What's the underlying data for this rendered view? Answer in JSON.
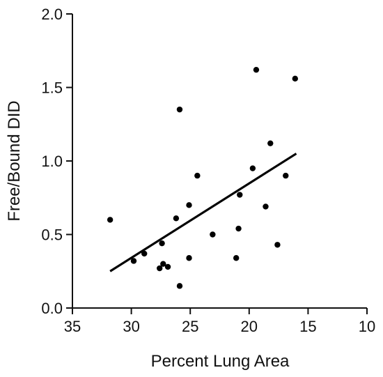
{
  "chart_data": {
    "type": "scatter",
    "title": "",
    "xlabel": "Percent Lung Area",
    "ylabel": "Free/Bound DID",
    "xlim": [
      35,
      10
    ],
    "ylim": [
      0.0,
      2.0
    ],
    "x_reversed": true,
    "grid": false,
    "x_ticks": [
      35,
      30,
      25,
      20,
      15,
      10
    ],
    "x_tick_labels": [
      "35",
      "30",
      "25",
      "20",
      "15",
      "10"
    ],
    "y_ticks": [
      0.0,
      0.5,
      1.0,
      1.5,
      2.0
    ],
    "y_tick_labels": [
      "0.0",
      "0.5",
      "1.0",
      "1.5",
      "2.0"
    ],
    "series": [
      {
        "points": [
          [
            31.8,
            0.6
          ],
          [
            29.8,
            0.32
          ],
          [
            28.9,
            0.37
          ],
          [
            27.6,
            0.27
          ],
          [
            27.4,
            0.44
          ],
          [
            27.3,
            0.3
          ],
          [
            26.9,
            0.28
          ],
          [
            26.2,
            0.61
          ],
          [
            25.9,
            1.35
          ],
          [
            25.9,
            0.15
          ],
          [
            25.1,
            0.7
          ],
          [
            25.1,
            0.34
          ],
          [
            24.4,
            0.9
          ],
          [
            23.1,
            0.5
          ],
          [
            21.1,
            0.34
          ],
          [
            20.9,
            0.54
          ],
          [
            20.8,
            0.77
          ],
          [
            19.7,
            0.95
          ],
          [
            19.4,
            1.62
          ],
          [
            18.6,
            0.69
          ],
          [
            18.2,
            1.12
          ],
          [
            17.6,
            0.43
          ],
          [
            16.9,
            0.9
          ],
          [
            16.1,
            1.56
          ]
        ],
        "color": "#000000"
      }
    ],
    "regression_line": {
      "x": [
        31.8,
        16.0
      ],
      "y": [
        0.25,
        1.05
      ],
      "color": "#000000"
    }
  }
}
